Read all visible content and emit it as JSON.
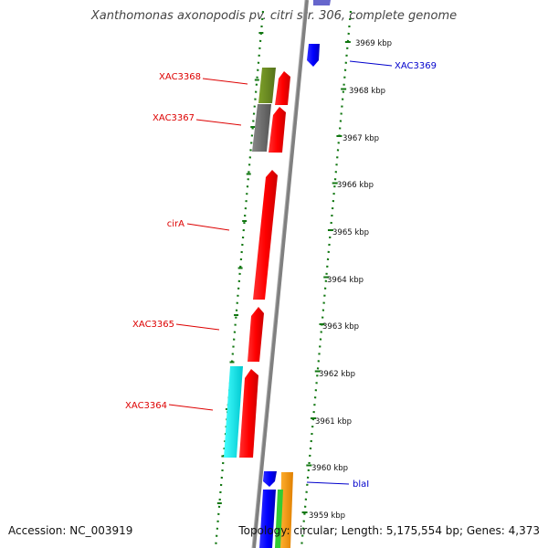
{
  "title": "Xanthomonas axonopodis pv. citri str. 306, complete genome",
  "footer": {
    "accession": "Accession: NC_003919",
    "topology": "Topology: circular; Length: 5,175,554 bp; Genes: 4,373"
  },
  "scale_labels": [
    "3969 kbp",
    "3968 kbp",
    "3967 kbp",
    "3966 kbp",
    "3965 kbp",
    "3964 kbp",
    "3963 kbp",
    "3962 kbp",
    "3961 kbp",
    "3960 kbp",
    "3959 kbp"
  ],
  "gene_labels_left": [
    "XAC3368",
    "XAC3367",
    "cirA",
    "XAC3365",
    "XAC3364"
  ],
  "gene_labels_right": [
    "XAC3369",
    "blaI"
  ],
  "colors": {
    "forward_gene": "#ff0000",
    "reverse_gene": "#0000ff",
    "left_label": "#dd0000",
    "right_label": "#0000cc",
    "backbone": "#808080",
    "guide_dots": "#117711",
    "olive": "#6b8e23",
    "grey": "#6e6e6e",
    "cyan": "#00e5ee",
    "orange": "#ff9900",
    "green": "#33cc33"
  }
}
